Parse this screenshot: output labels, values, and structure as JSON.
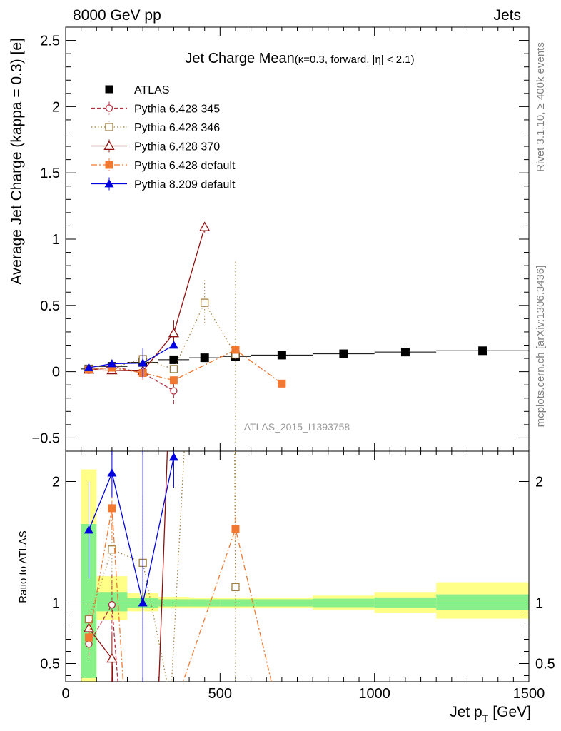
{
  "header": {
    "left": "8000 GeV pp",
    "right": "Jets"
  },
  "side_labels": {
    "rivet": "Rivet 3.1.10, ≥ 400k events",
    "mcplots": "mcplots.cern.ch [arXiv:1306.3436]"
  },
  "watermark": "ATLAS_2015_I1393758",
  "colors": {
    "atlas": "#000000",
    "p345": "#b03040",
    "p346": "#a08040",
    "p370": "#901010",
    "p6def": "#f07830",
    "p8def": "#0000e0",
    "band_inner": "#88f088",
    "band_outer": "#ffff88"
  },
  "chart_data": [
    {
      "type": "scatter",
      "panel": "main",
      "title": "Jet Charge Mean",
      "title_detail": "(κ=0.3, forward, |η| < 2.1)",
      "ylabel": "Average Jet Charge (kappa = 0.3) [e]",
      "xlim": [
        0,
        1500
      ],
      "ylim": [
        -0.6,
        2.6
      ],
      "yticks": [
        -0.5,
        0,
        0.5,
        1,
        1.5,
        2,
        2.5
      ],
      "yticklabels": [
        "−0.5",
        "0",
        "0.5",
        "1",
        "1.5",
        "2",
        "2.5"
      ],
      "legend": [
        "ATLAS",
        "Pythia 6.428 345",
        "Pythia 6.428 346",
        "Pythia 6.428 370",
        "Pythia 6.428 default",
        "Pythia 8.209 default"
      ],
      "series": [
        {
          "name": "ATLAS",
          "key": "atlas",
          "style": "data",
          "marker": "square-filled",
          "x": [
            75,
            150,
            250,
            350,
            450,
            550,
            700,
            900,
            1100,
            1350
          ],
          "y": [
            0.02,
            0.04,
            0.07,
            0.09,
            0.105,
            0.115,
            0.125,
            0.135,
            0.148,
            0.158
          ],
          "xlo": [
            50,
            100,
            200,
            300,
            400,
            500,
            600,
            800,
            1000,
            1200
          ],
          "xhi": [
            100,
            200,
            300,
            400,
            500,
            600,
            800,
            1000,
            1200,
            1500
          ]
        },
        {
          "name": "Pythia 6.428 345",
          "key": "p345",
          "marker": "circle-open",
          "dash": "5,3",
          "x": [
            75,
            150,
            250,
            350
          ],
          "y": [
            0.01,
            0.04,
            -0.01,
            -0.145
          ],
          "err": [
            0.01,
            0.03,
            0.06,
            0.1
          ]
        },
        {
          "name": "Pythia 6.428 346",
          "key": "p346",
          "marker": "square-open",
          "dash": "1.5,3",
          "x": [
            75,
            150,
            250,
            350,
            450,
            550
          ],
          "y": [
            0.02,
            0.03,
            0.095,
            0.02,
            0.52,
            0.13
          ],
          "err": [
            0.01,
            0.03,
            0.05,
            0.03,
            0.17,
            0.7
          ]
        },
        {
          "name": "Pythia 6.428 370",
          "key": "p370",
          "marker": "triangle-open",
          "dash": "",
          "x": [
            75,
            150,
            250,
            350,
            450
          ],
          "y": [
            0.015,
            0.01,
            0.005,
            0.29,
            1.09
          ],
          "err": [
            0.01,
            0.02,
            0.03,
            0.1,
            0.04
          ]
        },
        {
          "name": "Pythia 6.428 default",
          "key": "p6def",
          "marker": "square-filled",
          "dash": "8,3,2,3",
          "x": [
            75,
            150,
            250,
            350,
            550,
            700
          ],
          "y": [
            0.015,
            0.03,
            -0.01,
            -0.065,
            0.165,
            -0.09
          ],
          "err": [
            0.01,
            0.02,
            0.03,
            0.02,
            0.02,
            0.01
          ]
        },
        {
          "name": "Pythia 8.209 default",
          "key": "p8def",
          "marker": "triangle-filled",
          "dash": "",
          "x": [
            75,
            150,
            250,
            350
          ],
          "y": [
            0.03,
            0.06,
            0.065,
            0.2
          ],
          "err": [
            0.01,
            0.02,
            0.11,
            0.02
          ]
        }
      ]
    },
    {
      "type": "scatter",
      "panel": "ratio",
      "ylabel": "Ratio to ATLAS",
      "xlabel": "Jet p",
      "xlabel_sub": "T",
      "xlabel_unit": "[GeV]",
      "xlim": [
        0,
        1500
      ],
      "ylim": [
        0.35,
        2.25
      ],
      "xticks": [
        0,
        500,
        1000,
        1500
      ],
      "xticklabels": [
        "0",
        "500",
        "1000",
        "1500"
      ],
      "yticks": [
        0.5,
        1,
        2
      ],
      "yticklabels": [
        "0.5",
        "1",
        "2"
      ],
      "bands": {
        "xlo": [
          50,
          100,
          200,
          300,
          400,
          500,
          600,
          800,
          1000,
          1200
        ],
        "xhi": [
          100,
          200,
          300,
          400,
          500,
          600,
          800,
          1000,
          1200,
          1500
        ],
        "inner": [
          [
            0.38,
            1.65
          ],
          [
            0.93,
            1.09
          ],
          [
            0.96,
            1.04
          ],
          [
            0.97,
            1.03
          ],
          [
            0.97,
            1.03
          ],
          [
            0.97,
            1.03
          ],
          [
            0.97,
            1.03
          ],
          [
            0.965,
            1.035
          ],
          [
            0.96,
            1.045
          ],
          [
            0.94,
            1.07
          ]
        ],
        "outer": [
          [
            0.3,
            2.1
          ],
          [
            0.86,
            1.22
          ],
          [
            0.93,
            1.08
          ],
          [
            0.955,
            1.05
          ],
          [
            0.955,
            1.045
          ],
          [
            0.955,
            1.045
          ],
          [
            0.955,
            1.045
          ],
          [
            0.945,
            1.06
          ],
          [
            0.915,
            1.09
          ],
          [
            0.87,
            1.17
          ]
        ]
      },
      "series": [
        {
          "key": "p345",
          "marker": "circle-open",
          "dash": "5,3",
          "points": [
            [
              75,
              0.66,
              0.12
            ],
            [
              150,
              0.985,
              0.25
            ]
          ],
          "tail": [
            [
              175,
              0.15
            ]
          ]
        },
        {
          "key": "p346",
          "marker": "square-open",
          "dash": "1.5,3",
          "points": [
            [
              75,
              0.865,
              0.13
            ],
            [
              150,
              1.44,
              0.3
            ],
            [
              250,
              1.33,
              0.55
            ],
            [
              550,
              1.13,
              1.6
            ]
          ],
          "pre_tail": [
            [
              340,
              0.2
            ],
            [
              400,
              3.0
            ],
            [
              545,
              3.0
            ]
          ]
        },
        {
          "key": "p370",
          "marker": "triangle-open",
          "dash": "",
          "points": [
            [
              75,
              0.79,
              0.12
            ],
            [
              150,
              0.54,
              0.2
            ]
          ],
          "tail": [
            [
              155,
              0.2
            ],
            [
              300,
              0.2
            ],
            [
              340,
              3.0
            ]
          ]
        },
        {
          "key": "p6def",
          "marker": "square-filled",
          "dash": "8,3,2,3",
          "points": [
            [
              75,
              0.715,
              0.1
            ],
            [
              150,
              1.78,
              0.25
            ],
            [
              550,
              1.61,
              0.1
            ]
          ],
          "mid": [
            [
              190,
              0.2
            ],
            [
              360,
              0.2
            ],
            [
              550,
              1.61
            ],
            [
              680,
              0.2
            ]
          ]
        },
        {
          "key": "p8def",
          "marker": "triangle-filled",
          "dash": "",
          "points": [
            [
              75,
              1.6,
              0.4
            ],
            [
              150,
              2.07,
              0.2
            ],
            [
              250,
              1.0,
              1.8
            ],
            [
              350,
              2.2,
              0.25
            ]
          ]
        }
      ]
    }
  ]
}
